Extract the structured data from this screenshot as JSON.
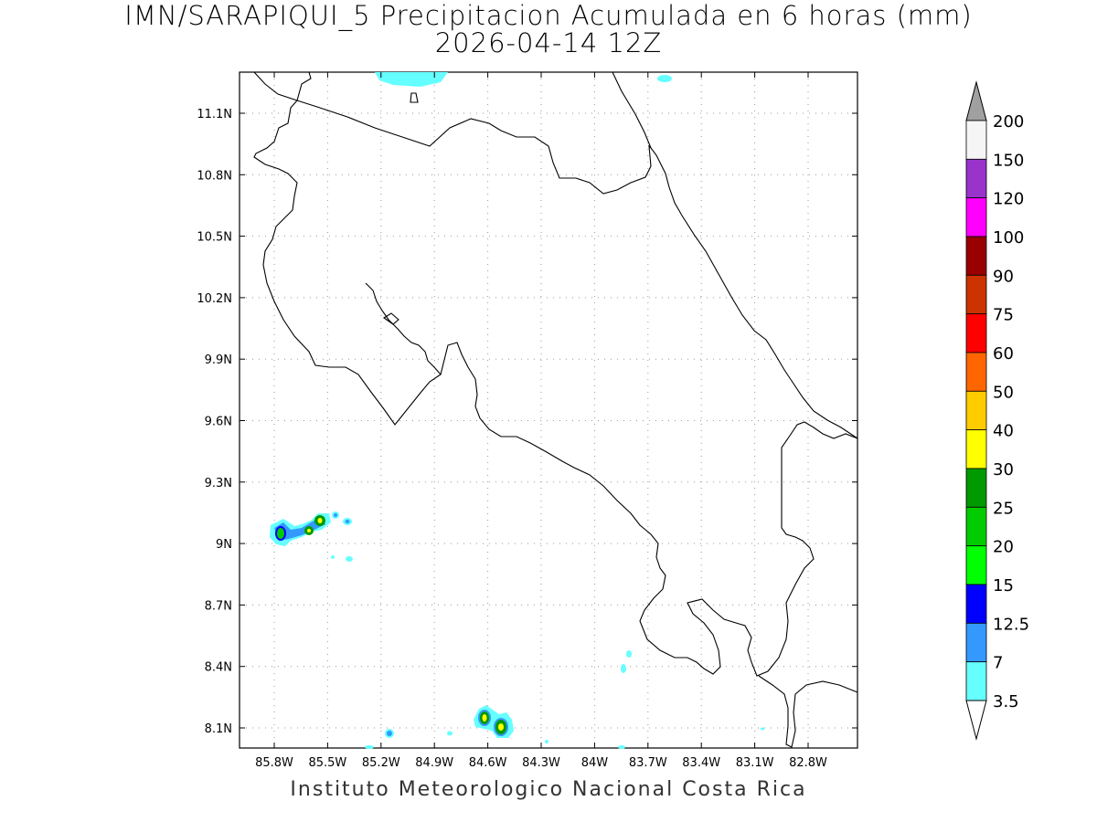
{
  "title": {
    "line1": "IMN/SARAPIQUI_5 Precipitacion Acumulada en 6 horas (mm)",
    "line2": "2026-04-14 12Z"
  },
  "footer": "Instituto Meteorologico Nacional Costa Rica",
  "axes": {
    "lon_ticks": [
      "85.8W",
      "85.5W",
      "85.2W",
      "84.9W",
      "84.6W",
      "84.3W",
      "84W",
      "83.7W",
      "83.4W",
      "83.1W",
      "82.8W"
    ],
    "lat_ticks": [
      "11.1N",
      "10.8N",
      "10.5N",
      "10.2N",
      "9.9N",
      "9.6N",
      "9.3N",
      "9N",
      "8.7N",
      "8.4N",
      "8.1N"
    ]
  },
  "colorbar": {
    "levels": [
      "200",
      "150",
      "120",
      "100",
      "90",
      "75",
      "60",
      "50",
      "40",
      "30",
      "25",
      "20",
      "15",
      "12.5",
      "7",
      "3.5"
    ],
    "colors": [
      "#f5f5f5",
      "#9933cc",
      "#ff00ff",
      "#990000",
      "#cc3300",
      "#ff0000",
      "#ff6600",
      "#ffcc00",
      "#ffff00",
      "#009900",
      "#00cc00",
      "#00ff00",
      "#0000ff",
      "#3399ff",
      "#66ffff"
    ],
    "over_color": "#a0a0a0"
  }
}
